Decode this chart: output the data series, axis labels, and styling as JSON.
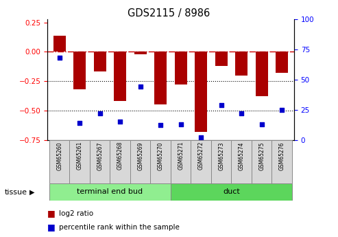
{
  "title": "GDS2115 / 8986",
  "samples": [
    "GSM65260",
    "GSM65261",
    "GSM65267",
    "GSM65268",
    "GSM65269",
    "GSM65270",
    "GSM65271",
    "GSM65272",
    "GSM65273",
    "GSM65274",
    "GSM65275",
    "GSM65276"
  ],
  "log2_ratio": [
    0.14,
    -0.32,
    -0.17,
    -0.42,
    -0.02,
    -0.45,
    -0.28,
    -0.68,
    -0.12,
    -0.2,
    -0.38,
    -0.18
  ],
  "percentile_rank": [
    68,
    14,
    22,
    15,
    44,
    12,
    13,
    2,
    29,
    22,
    13,
    25
  ],
  "groups": [
    {
      "label": "terminal end bud",
      "start": 0,
      "end": 6,
      "color": "#90ee90"
    },
    {
      "label": "duct",
      "start": 6,
      "end": 12,
      "color": "#5cd65c"
    }
  ],
  "bar_color": "#aa0000",
  "dot_color": "#0000cc",
  "ylim_left": [
    -0.75,
    0.28
  ],
  "ylim_right": [
    0,
    100
  ],
  "yticks_left": [
    0.25,
    0,
    -0.25,
    -0.5,
    -0.75
  ],
  "yticks_right": [
    100,
    75,
    50,
    25,
    0
  ],
  "hline_zero_color": "#cc0000",
  "hline_dotted_vals": [
    -0.25,
    -0.5
  ],
  "tissue_label": "tissue",
  "legend_items": [
    {
      "label": "log2 ratio",
      "color": "#aa0000"
    },
    {
      "label": "percentile rank within the sample",
      "color": "#0000cc"
    }
  ],
  "label_box_color": "#d8d8d8",
  "label_box_edge": "#888888"
}
